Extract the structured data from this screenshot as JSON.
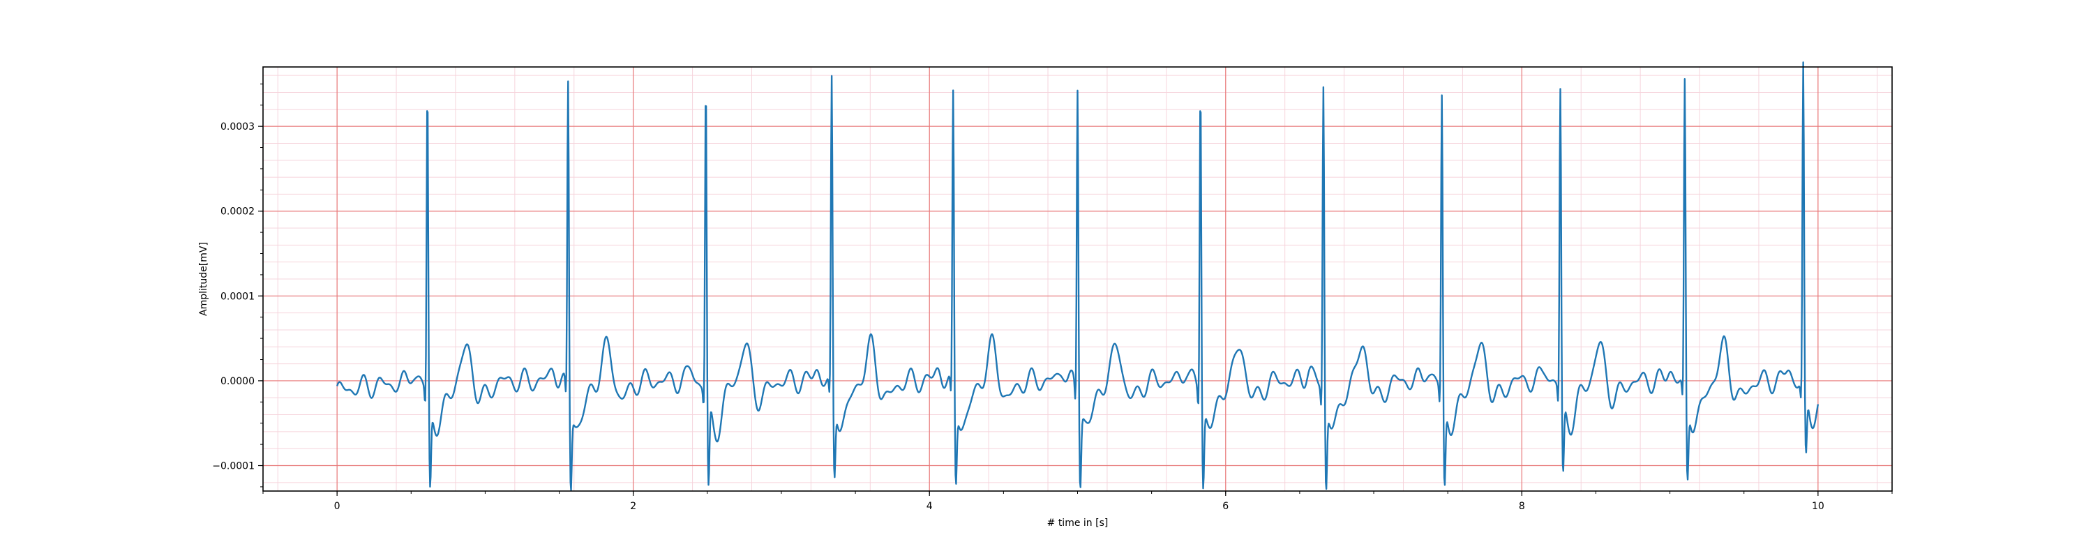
{
  "chart_data": {
    "type": "line",
    "title": "",
    "xlabel": "# time in [s]",
    "ylabel": "Amplitude[mV]",
    "xlim": [
      -0.5,
      10.5
    ],
    "ylim": [
      -0.00013,
      0.00037
    ],
    "x_ticks": [
      0,
      2,
      4,
      6,
      8,
      10
    ],
    "x_tick_labels": [
      "0",
      "2",
      "4",
      "6",
      "8",
      "10"
    ],
    "y_ticks": [
      -0.0001,
      0.0,
      0.0001,
      0.0002,
      0.0003
    ],
    "y_tick_labels": [
      "−0.0001",
      "0.0000",
      "0.0001",
      "0.0002",
      "0.0003"
    ],
    "grid": true,
    "major_grid_color": "#e87a7a",
    "minor_grid_color": "#f6d4dc",
    "line_color": "#1f77b4",
    "sampling_rate_hz": 250,
    "x_start": 0,
    "x_end": 10,
    "beats": [
      {
        "t": 0.61,
        "r_peak": 0.000333,
        "s_trough": -9.8e-05
      },
      {
        "t": 1.56,
        "r_peak": 0.000339,
        "s_trough": -9.7e-05
      },
      {
        "t": 2.49,
        "r_peak": 0.000338,
        "s_trough": -0.000105
      },
      {
        "t": 3.34,
        "r_peak": 0.000337,
        "s_trough": -9e-05
      },
      {
        "t": 4.16,
        "r_peak": 0.000322,
        "s_trough": -9.4e-05
      },
      {
        "t": 5.0,
        "r_peak": 0.000338,
        "s_trough": -9.3e-05
      },
      {
        "t": 5.83,
        "r_peak": 0.000339,
        "s_trough": -9.7e-05
      },
      {
        "t": 6.66,
        "r_peak": 0.000339,
        "s_trough": -9.9e-05
      },
      {
        "t": 7.46,
        "r_peak": 0.000325,
        "s_trough": -9.9e-05
      },
      {
        "t": 8.26,
        "r_peak": 0.000329,
        "s_trough": -9.1e-05
      },
      {
        "t": 9.1,
        "r_peak": 0.000336,
        "s_trough": -9.2e-05
      },
      {
        "t": 9.9,
        "r_peak": 0.00035,
        "s_trough": -7.6e-05
      }
    ]
  }
}
